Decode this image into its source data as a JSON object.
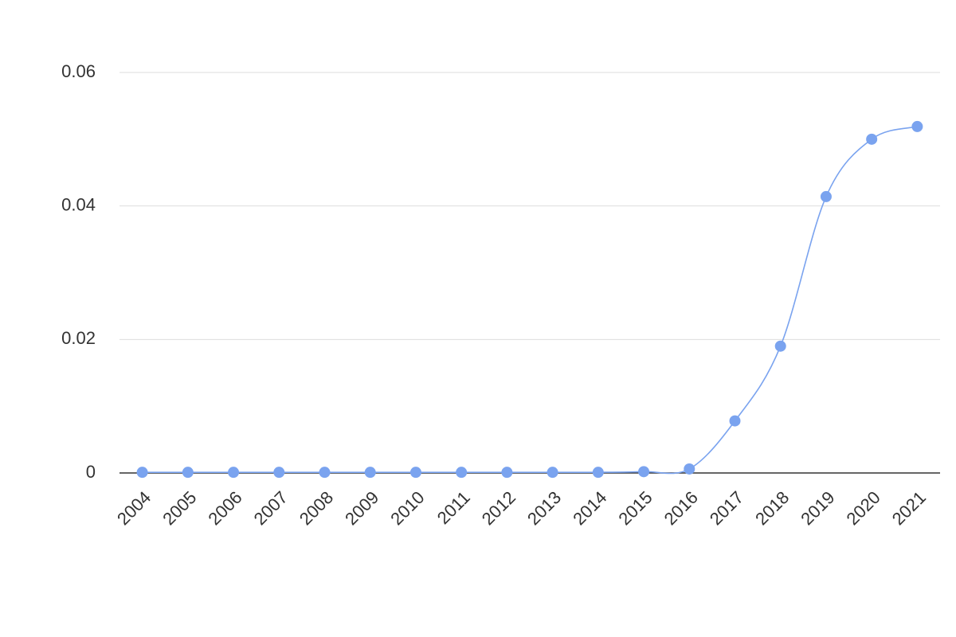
{
  "chart_data": {
    "type": "line",
    "categories": [
      "2004",
      "2005",
      "2006",
      "2007",
      "2008",
      "2009",
      "2010",
      "2011",
      "2012",
      "2013",
      "2014",
      "2015",
      "2016",
      "2017",
      "2018",
      "2019",
      "2020",
      "2021"
    ],
    "series": [
      {
        "color": "#7aa3ef",
        "values": [
          0.0001,
          0.0001,
          0.0001,
          0.0001,
          0.0001,
          0.0001,
          0.0001,
          0.0001,
          0.0001,
          0.0001,
          0.0001,
          0.0002,
          0.0006,
          0.0078,
          0.019,
          0.0414,
          0.05,
          0.0519
        ]
      }
    ],
    "ylim": [
      0,
      0.06
    ],
    "yticks": [
      0,
      0.02,
      0.04,
      0.06
    ],
    "grid": true,
    "smooth": true
  }
}
